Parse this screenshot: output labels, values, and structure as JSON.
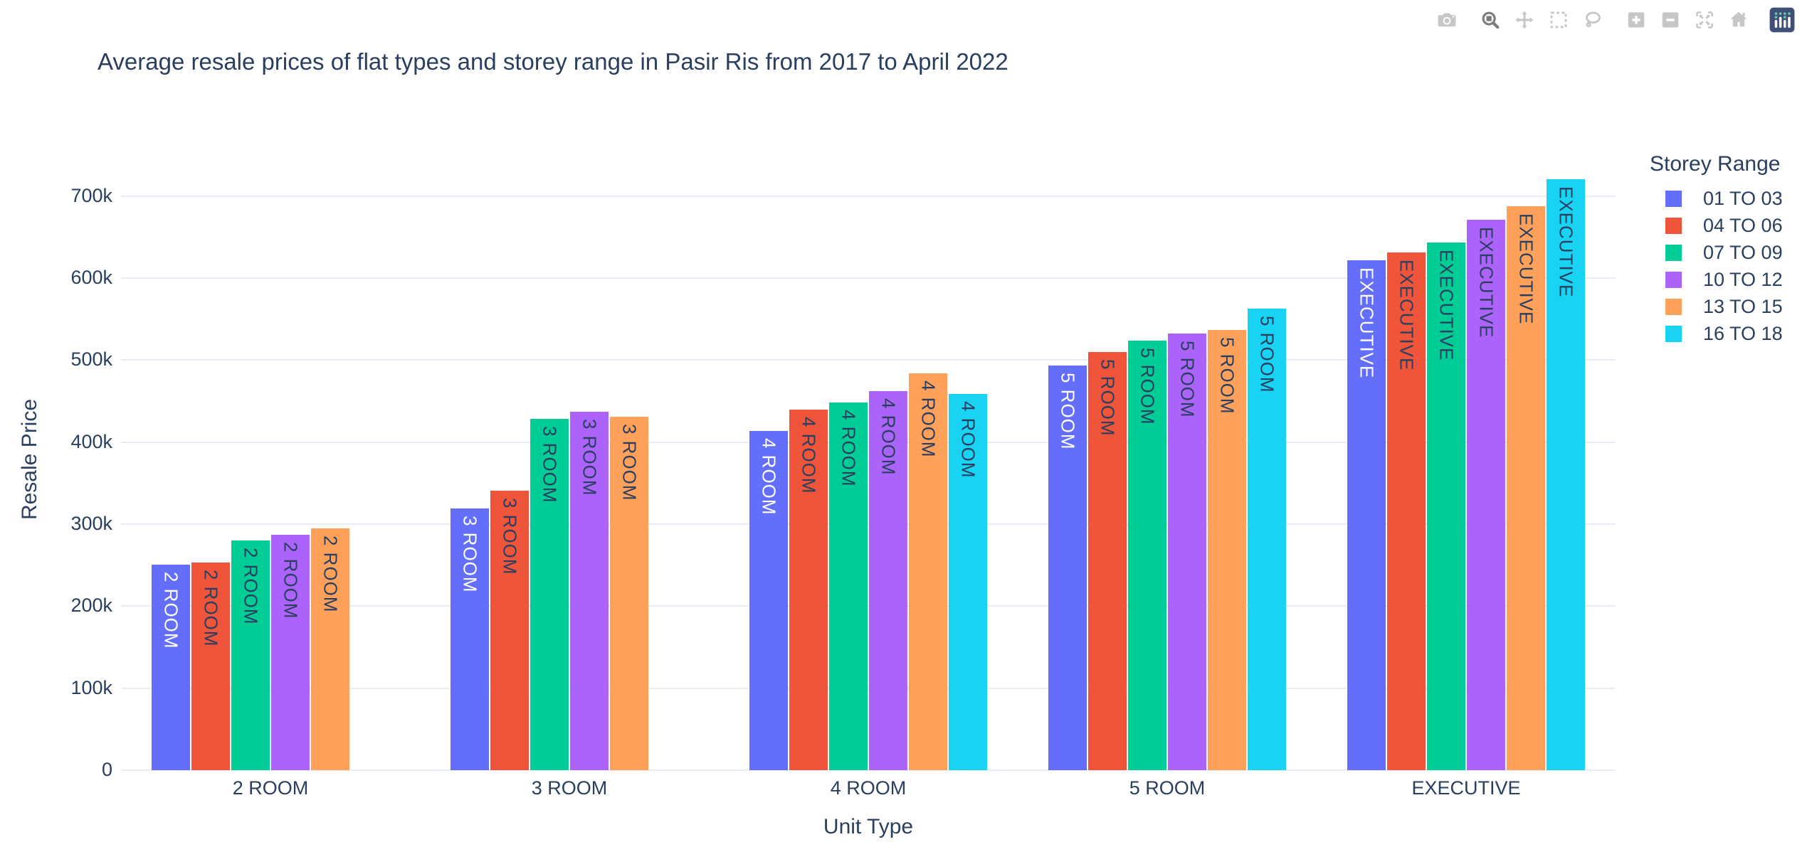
{
  "chart_data": {
    "type": "bar",
    "title": "Average resale prices of flat types and storey range in Pasir Ris from 2017 to April 2022",
    "xlabel": "Unit Type",
    "ylabel": "Resale Price",
    "categories": [
      "2 ROOM",
      "3 ROOM",
      "4 ROOM",
      "5 ROOM",
      "EXECUTIVE"
    ],
    "series": [
      {
        "name": "01 TO 03",
        "color": "#636EFA",
        "label_color": "#ffffff",
        "values": [
          251000,
          319000,
          414000,
          493000,
          622000
        ]
      },
      {
        "name": "04 TO 06",
        "color": "#EF553B",
        "label_color": "#2a3f5f",
        "values": [
          253000,
          341000,
          440000,
          510000,
          631000
        ]
      },
      {
        "name": "07 TO 09",
        "color": "#00CC96",
        "label_color": "#2a3f5f",
        "values": [
          280000,
          428000,
          448000,
          524000,
          643000
        ]
      },
      {
        "name": "10 TO 12",
        "color": "#AB63FA",
        "label_color": "#2a3f5f",
        "values": [
          287000,
          437000,
          462000,
          532000,
          671000
        ]
      },
      {
        "name": "13 TO 15",
        "color": "#FFA15A",
        "label_color": "#2a3f5f",
        "values": [
          295000,
          431000,
          484000,
          537000,
          688000
        ]
      },
      {
        "name": "16 TO 18",
        "color": "#19D3F3",
        "label_color": "#2a3f5f",
        "values": [
          null,
          null,
          459000,
          563000,
          721000
        ]
      }
    ],
    "bar_inside_labels": "category",
    "ylim": [
      0,
      757000
    ],
    "yticks": [
      {
        "value": 0,
        "label": "0"
      },
      {
        "value": 100000,
        "label": "100k"
      },
      {
        "value": 200000,
        "label": "200k"
      },
      {
        "value": 300000,
        "label": "300k"
      },
      {
        "value": 400000,
        "label": "400k"
      },
      {
        "value": 500000,
        "label": "500k"
      },
      {
        "value": 600000,
        "label": "600k"
      },
      {
        "value": 700000,
        "label": "700k"
      }
    ],
    "grid": true,
    "legend_title": "Storey Range",
    "legend_position": "right"
  },
  "modebar": {
    "groups": [
      [
        "camera"
      ],
      [
        "zoom",
        "pan",
        "box-select",
        "lasso"
      ],
      [
        "zoom-in",
        "zoom-out",
        "autoscale",
        "reset-home"
      ],
      [
        "plotly-logo"
      ]
    ],
    "active": "zoom"
  },
  "colors": {
    "text": "#2a3f5f",
    "grid": "#e9edf6",
    "background": "#ffffff",
    "modebar_inactive": "#c7c7c7",
    "modebar_active": "#7c7c7c",
    "logo_bg": "#3f4f75",
    "logo_dot": "#6ec4b2"
  }
}
